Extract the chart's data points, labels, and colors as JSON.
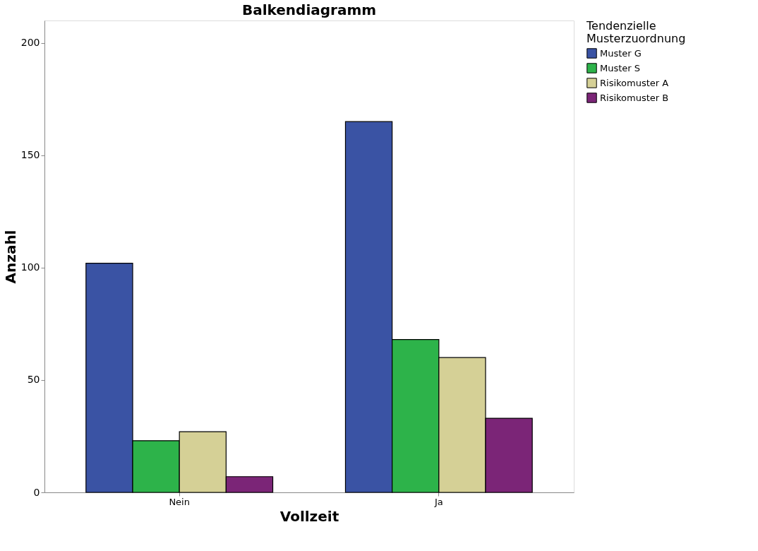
{
  "chart_data": {
    "type": "bar",
    "title": "Balkendiagramm",
    "xlabel": "Vollzeit",
    "ylabel": "Anzahl",
    "legend_title": "Tendenzielle\nMusterzuordnung",
    "categories": [
      "Nein",
      "Ja"
    ],
    "series": [
      {
        "name": "Muster G",
        "color": "#3a53a4",
        "values": [
          102,
          165
        ]
      },
      {
        "name": "Muster S",
        "color": "#2db34a",
        "values": [
          23,
          68
        ]
      },
      {
        "name": "Risikomuster A",
        "color": "#d5d096",
        "values": [
          27,
          60
        ]
      },
      {
        "name": "Risikomuster B",
        "color": "#7b2577",
        "values": [
          7,
          33
        ]
      }
    ],
    "ylim": [
      0,
      210
    ],
    "yticks": [
      0,
      50,
      100,
      150,
      200
    ],
    "grid": false,
    "legend": "top right"
  }
}
